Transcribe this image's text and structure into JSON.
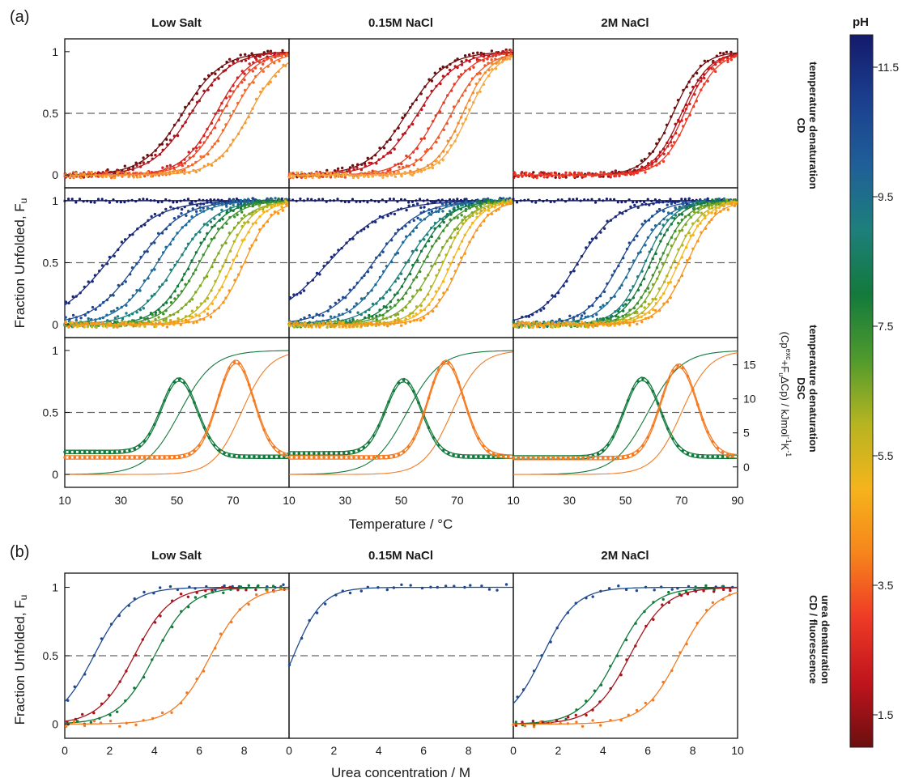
{
  "panel_labels": [
    "(a)",
    "(b)"
  ],
  "column_titles": [
    "Low Salt",
    "0.15M NaCl",
    "2M NaCl"
  ],
  "row_labels": {
    "cd_temp": [
      "CD",
      "temperature denaturation"
    ],
    "dsc_temp": [
      "DSC",
      "temperature denaturation"
    ],
    "urea": [
      "CD / fluorescence",
      "urea denaturation"
    ]
  },
  "axes": {
    "y_title": "Fraction Unfolded, Fu",
    "x_title_a": "Temperature / °C",
    "x_title_b": "Urea concentration / M",
    "y2_title": "(Cp^exc+FuΔCp) / kJmol⁻¹K⁻¹",
    "y_ticks": [
      "0",
      "0.5",
      "1"
    ],
    "y2_ticks": [
      "0",
      "5",
      "10",
      "15"
    ],
    "temp_ticks": [
      "10",
      "30",
      "50",
      "70",
      "10",
      "30",
      "50",
      "70",
      "10",
      "30",
      "50",
      "70",
      "90"
    ],
    "urea_ticks": [
      "0",
      "2",
      "4",
      "6",
      "8",
      "0",
      "2",
      "4",
      "6",
      "8",
      "0",
      "2",
      "4",
      "6",
      "8",
      "10"
    ]
  },
  "colorbar": {
    "title": "pH",
    "ticks": [
      "11.5",
      "9.5",
      "7.5",
      "5.5",
      "3.5",
      "1.5"
    ],
    "stops": [
      "#6b0f0f",
      "#c0141d",
      "#ee3b26",
      "#f7851c",
      "#f5b41c",
      "#b5b421",
      "#4f9a2d",
      "#127a3c",
      "#1e7f7c",
      "#1f5f98",
      "#1b3f8e",
      "#141a6b"
    ]
  },
  "chart_data": [
    {
      "type": "line",
      "title": "Low Salt",
      "row": "CD temperature denaturation",
      "xlim": [
        10,
        90
      ],
      "ylim": [
        0,
        1
      ],
      "reference_line": 0.5,
      "series": [
        {
          "color": "#6b0f0f",
          "tm": 52,
          "width": 7
        },
        {
          "color": "#a8141b",
          "tm": 55,
          "width": 7
        },
        {
          "color": "#d42020",
          "tm": 64,
          "width": 6
        },
        {
          "color": "#ea4a2a",
          "tm": 66,
          "width": 6
        },
        {
          "color": "#f06a2a",
          "tm": 70,
          "width": 6
        },
        {
          "color": "#f59a30",
          "tm": 76,
          "width": 6
        }
      ]
    },
    {
      "type": "line",
      "title": "0.15M NaCl",
      "row": "CD temperature denaturation",
      "xlim": [
        10,
        90
      ],
      "ylim": [
        0,
        1
      ],
      "reference_line": 0.5,
      "series": [
        {
          "color": "#6b0f0f",
          "tm": 52,
          "width": 7
        },
        {
          "color": "#c0141d",
          "tm": 56,
          "width": 7
        },
        {
          "color": "#e23c26",
          "tm": 63,
          "width": 6
        },
        {
          "color": "#ee5a2a",
          "tm": 68,
          "width": 6
        },
        {
          "color": "#f38a2c",
          "tm": 72,
          "width": 5
        },
        {
          "color": "#f7a840",
          "tm": 74,
          "width": 5
        }
      ]
    },
    {
      "type": "line",
      "title": "2M NaCl",
      "row": "CD temperature denaturation",
      "xlim": [
        10,
        90
      ],
      "ylim": [
        0,
        1
      ],
      "reference_line": 0.5,
      "series": [
        {
          "color": "#6b0f0f",
          "tm": 67,
          "width": 5
        },
        {
          "color": "#a8141b",
          "tm": 70,
          "width": 5
        },
        {
          "color": "#d42020",
          "tm": 71,
          "width": 5
        },
        {
          "color": "#ee3b26",
          "tm": 73,
          "width": 5
        }
      ]
    },
    {
      "type": "line",
      "title": "Low Salt",
      "row": "CD temperature denaturation, high pH",
      "xlim": [
        10,
        90
      ],
      "ylim": [
        0,
        1
      ],
      "reference_line": 0.5,
      "flat_series": [
        {
          "color": "#141a6b",
          "value": 1.0
        }
      ],
      "series": [
        {
          "color": "#1b2a7a",
          "tm": 25,
          "width": 9
        },
        {
          "color": "#1f4a92",
          "tm": 36,
          "width": 8
        },
        {
          "color": "#1f6a9a",
          "tm": 43,
          "width": 7
        },
        {
          "color": "#1e7f7c",
          "tm": 50,
          "width": 7
        },
        {
          "color": "#127a3c",
          "tm": 55,
          "width": 6
        },
        {
          "color": "#3f9030",
          "tm": 58,
          "width": 6
        },
        {
          "color": "#7fa828",
          "tm": 63,
          "width": 6
        },
        {
          "color": "#b5b421",
          "tm": 67,
          "width": 5
        },
        {
          "color": "#f5b41c",
          "tm": 70,
          "width": 5
        },
        {
          "color": "#f7951c",
          "tm": 74,
          "width": 5
        }
      ]
    },
    {
      "type": "line",
      "title": "0.15M NaCl",
      "row": "CD temperature denaturation, high pH",
      "xlim": [
        10,
        90
      ],
      "ylim": [
        0,
        1
      ],
      "reference_line": 0.5,
      "flat_series": [
        {
          "color": "#141a6b",
          "value": 1.0
        }
      ],
      "series": [
        {
          "color": "#1b2a7a",
          "tm": 24,
          "width": 10
        },
        {
          "color": "#1f4a92",
          "tm": 40,
          "width": 8
        },
        {
          "color": "#1f6a9a",
          "tm": 46,
          "width": 7
        },
        {
          "color": "#1e7f7c",
          "tm": 52,
          "width": 7
        },
        {
          "color": "#127a3c",
          "tm": 55,
          "width": 6
        },
        {
          "color": "#3f9030",
          "tm": 58,
          "width": 6
        },
        {
          "color": "#7fa828",
          "tm": 62,
          "width": 6
        },
        {
          "color": "#b5b421",
          "tm": 65,
          "width": 5
        },
        {
          "color": "#f5b41c",
          "tm": 68,
          "width": 5
        },
        {
          "color": "#f7951c",
          "tm": 71,
          "width": 5
        }
      ]
    },
    {
      "type": "line",
      "title": "2M NaCl",
      "row": "CD temperature denaturation, high pH",
      "xlim": [
        10,
        90
      ],
      "ylim": [
        0,
        1
      ],
      "reference_line": 0.5,
      "flat_series": [
        {
          "color": "#141a6b",
          "value": 1.0
        }
      ],
      "series": [
        {
          "color": "#1b2a7a",
          "tm": 33,
          "width": 7
        },
        {
          "color": "#1f4a92",
          "tm": 48,
          "width": 6
        },
        {
          "color": "#1f6a9a",
          "tm": 53,
          "width": 6
        },
        {
          "color": "#1e7f7c",
          "tm": 57,
          "width": 5
        },
        {
          "color": "#127a3c",
          "tm": 59,
          "width": 5
        },
        {
          "color": "#3f9030",
          "tm": 62,
          "width": 5
        },
        {
          "color": "#7fa828",
          "tm": 64,
          "width": 5
        },
        {
          "color": "#b5b421",
          "tm": 67,
          "width": 5
        },
        {
          "color": "#f5b41c",
          "tm": 69,
          "width": 5
        },
        {
          "color": "#f7951c",
          "tm": 72,
          "width": 5
        }
      ]
    },
    {
      "type": "line",
      "title": "Low Salt",
      "row": "DSC temperature denaturation",
      "xlim": [
        10,
        90
      ],
      "ylim": [
        0,
        1
      ],
      "y2lim": [
        -3,
        19
      ],
      "reference_line": 0.5,
      "peaks": [
        {
          "color": "#127a3c",
          "tm": 51,
          "height": 11,
          "baseline": 2.2,
          "post": 1.5
        },
        {
          "color": "#f47a20",
          "tm": 71,
          "height": 14,
          "baseline": 1.4,
          "post": 1.5
        }
      ],
      "fraction_curves": [
        {
          "color": "#127a3c",
          "tm": 51,
          "width": 6
        },
        {
          "color": "#f47a20",
          "tm": 73,
          "width": 5
        }
      ]
    },
    {
      "type": "line",
      "title": "0.15M NaCl",
      "row": "DSC temperature denaturation",
      "xlim": [
        10,
        90
      ],
      "ylim": [
        0,
        1
      ],
      "y2lim": [
        -3,
        19
      ],
      "reference_line": 0.5,
      "peaks": [
        {
          "color": "#127a3c",
          "tm": 51,
          "height": 11,
          "baseline": 2.0,
          "post": 1.5
        },
        {
          "color": "#f47a20",
          "tm": 66,
          "height": 14,
          "baseline": 1.4,
          "post": 1.5
        }
      ],
      "fraction_curves": [
        {
          "color": "#127a3c",
          "tm": 52,
          "width": 6
        },
        {
          "color": "#f47a20",
          "tm": 68,
          "width": 5
        }
      ]
    },
    {
      "type": "line",
      "title": "2M NaCl",
      "row": "DSC temperature denaturation",
      "xlim": [
        10,
        90
      ],
      "ylim": [
        0,
        1
      ],
      "y2lim": [
        -3,
        19
      ],
      "reference_line": 0.5,
      "peaks": [
        {
          "color": "#127a3c",
          "tm": 56,
          "height": 11.5,
          "baseline": 1.4,
          "post": 1.5
        },
        {
          "color": "#f47a20",
          "tm": 69,
          "height": 13.5,
          "baseline": 1.3,
          "post": 1.5
        }
      ],
      "fraction_curves": [
        {
          "color": "#127a3c",
          "tm": 58,
          "width": 6
        },
        {
          "color": "#f47a20",
          "tm": 70,
          "width": 5
        }
      ]
    },
    {
      "type": "line",
      "title": "Low Salt",
      "row": "CD / fluorescence urea denaturation",
      "xlim": [
        0,
        10
      ],
      "ylim": [
        0,
        1
      ],
      "reference_line": 0.5,
      "series": [
        {
          "color": "#1f4a92",
          "tm": 1.3,
          "width": 0.8
        },
        {
          "color": "#a8141b",
          "tm": 3.1,
          "width": 0.8
        },
        {
          "color": "#127a3c",
          "tm": 4.0,
          "width": 0.8
        },
        {
          "color": "#f47a20",
          "tm": 6.5,
          "width": 0.8
        }
      ]
    },
    {
      "type": "line",
      "title": "0.15M NaCl",
      "row": "CD / fluorescence urea denaturation",
      "xlim": [
        0,
        10
      ],
      "ylim": [
        0,
        1
      ],
      "reference_line": 0.5,
      "series": [
        {
          "color": "#1f4a92",
          "tm": 0.2,
          "width": 0.65
        }
      ]
    },
    {
      "type": "line",
      "title": "2M NaCl",
      "row": "CD / fluorescence urea denaturation",
      "xlim": [
        0,
        10
      ],
      "ylim": [
        0,
        1
      ],
      "reference_line": 0.5,
      "series": [
        {
          "color": "#1f4a92",
          "tm": 1.3,
          "width": 0.75
        },
        {
          "color": "#127a3c",
          "tm": 4.6,
          "width": 0.8
        },
        {
          "color": "#a8141b",
          "tm": 5.2,
          "width": 0.8
        },
        {
          "color": "#f47a20",
          "tm": 7.4,
          "width": 0.8
        }
      ]
    }
  ]
}
